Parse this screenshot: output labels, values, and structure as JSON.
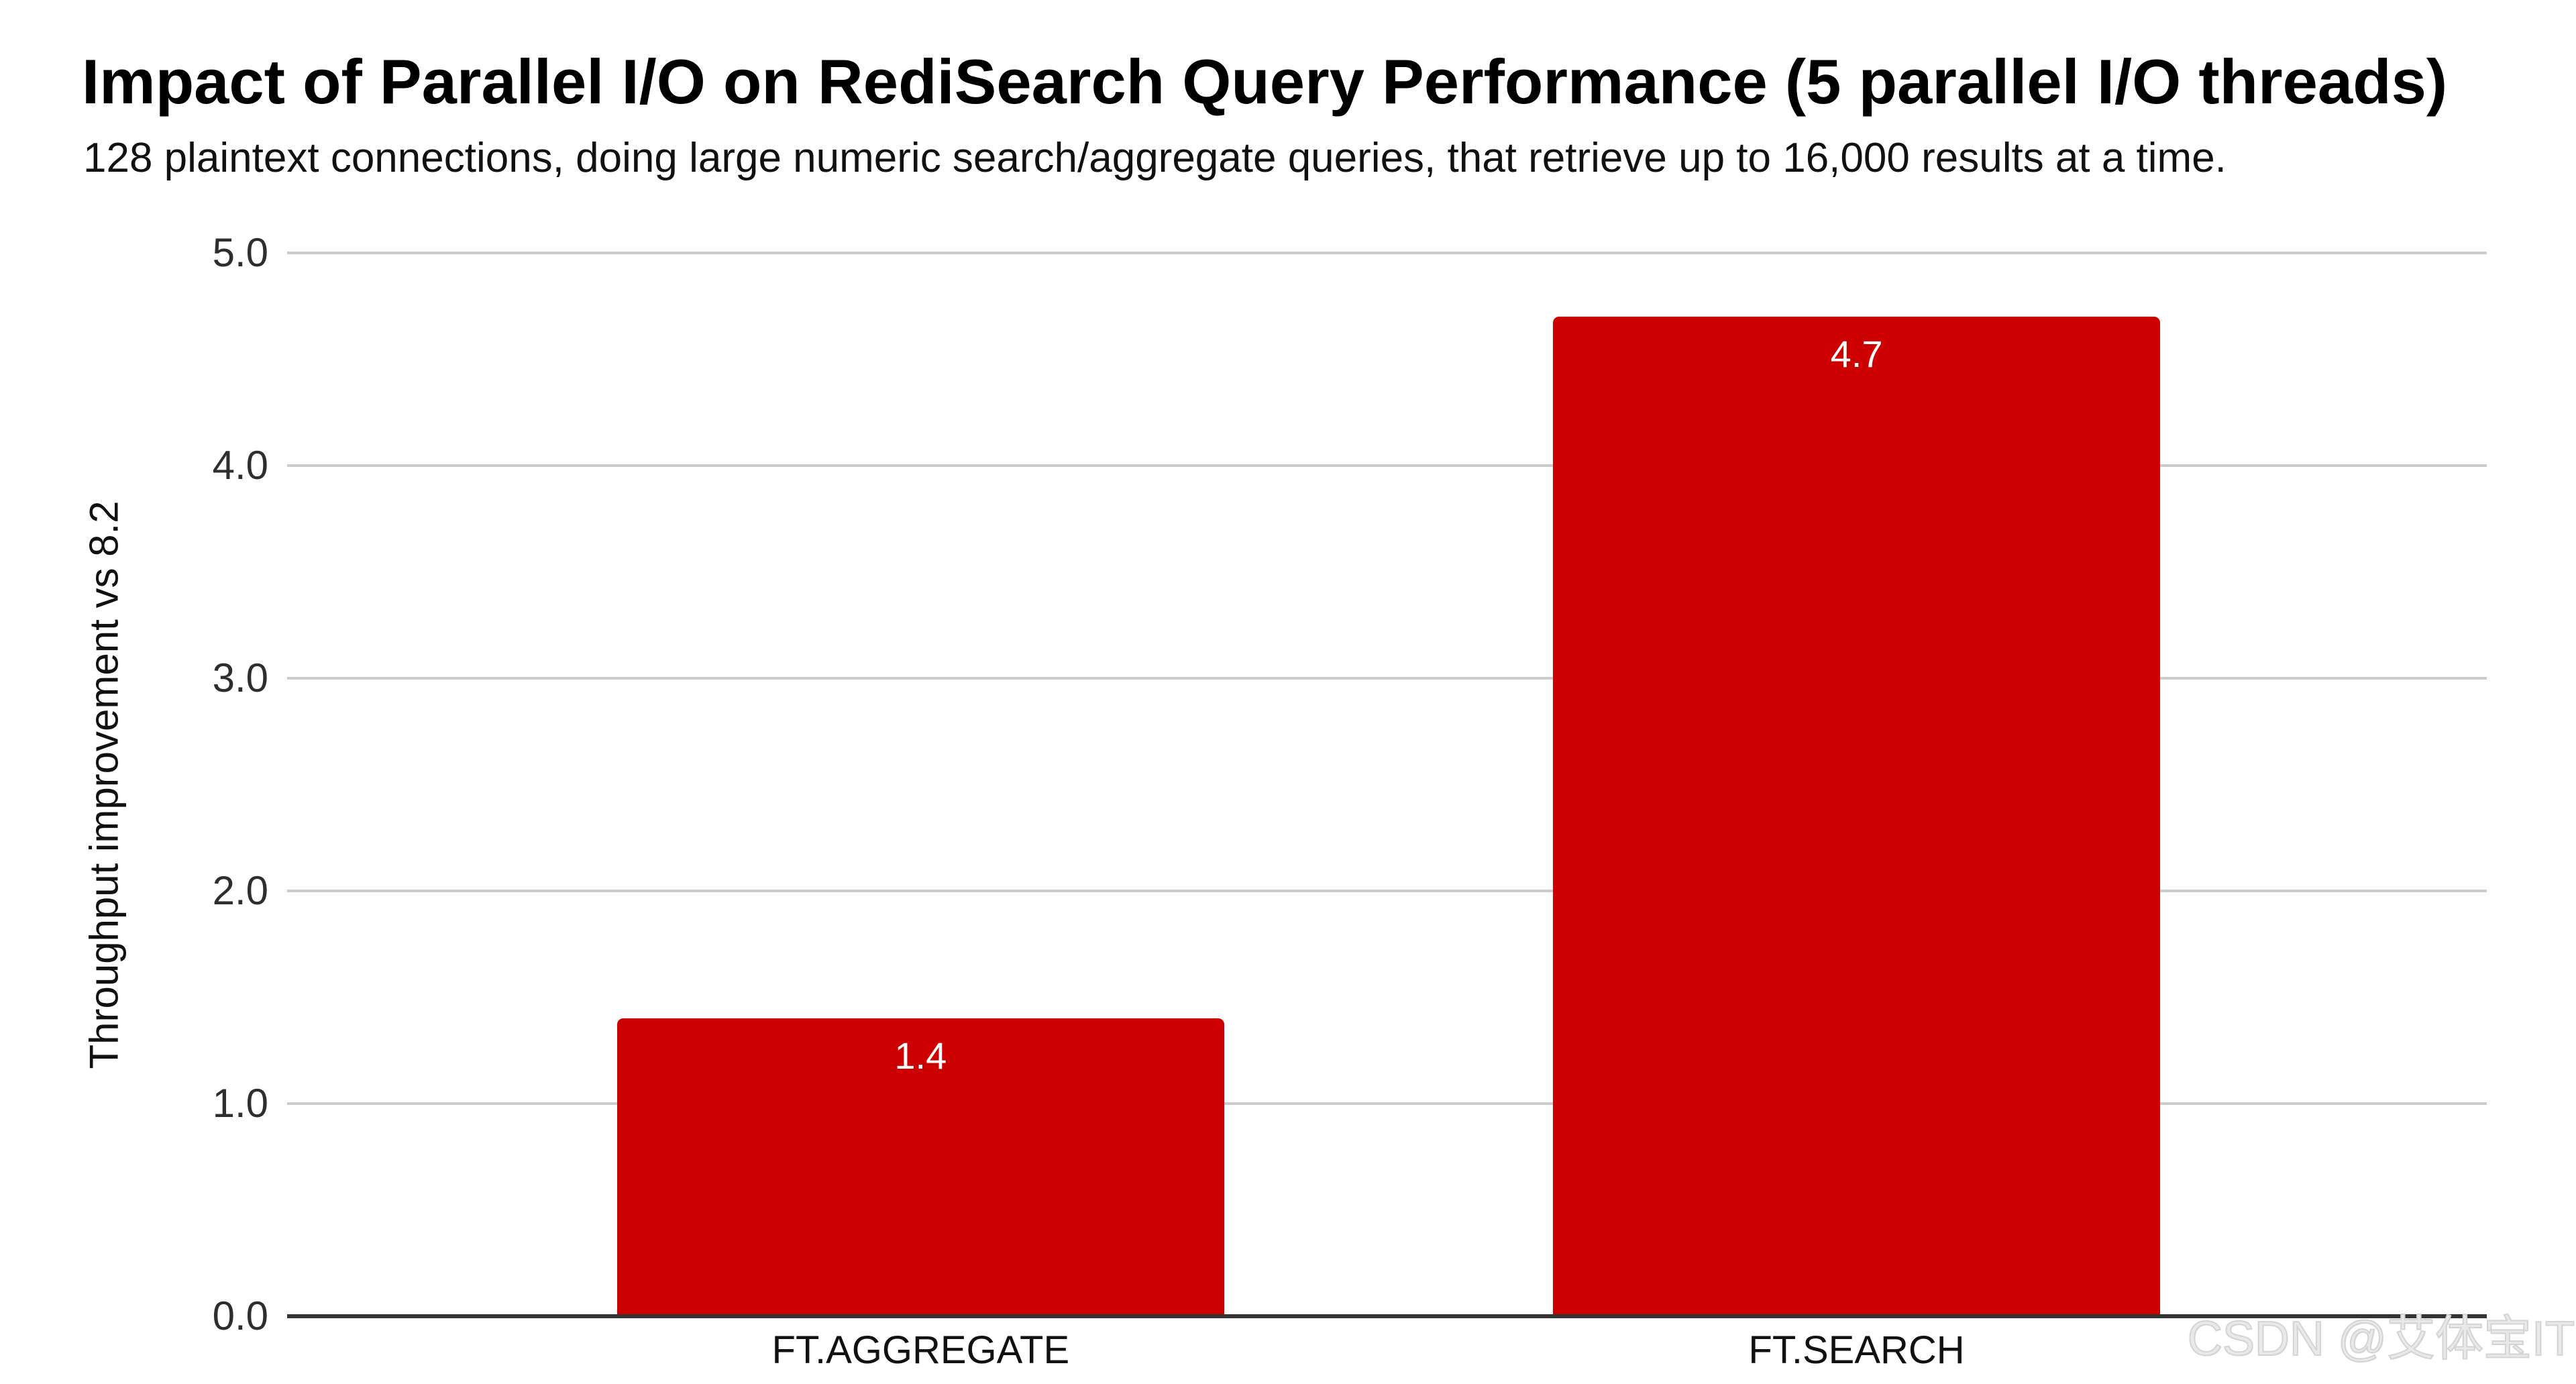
{
  "chart_data": {
    "type": "bar",
    "title": "Impact of Parallel I/O on RediSearch Query Performance (5 parallel I/O threads)",
    "subtitle": "128 plaintext connections, doing large numeric search/aggregate queries, that retrieve up to 16,000 results at a time.",
    "ylabel": "Throughput improvement vs 8.2",
    "xlabel": "",
    "categories": [
      "FT.AGGREGATE",
      "FT.SEARCH"
    ],
    "values": [
      1.4,
      4.7
    ],
    "bar_labels": [
      "1.4",
      "4.7"
    ],
    "ylim": [
      0,
      5
    ],
    "yticks": [
      "0.0",
      "1.0",
      "2.0",
      "3.0",
      "4.0",
      "5.0"
    ],
    "grid": true,
    "legend_position": "none",
    "bar_color": "#cc0000",
    "bar_label_color": "#ffffff",
    "gridline_color": "#cccccc",
    "axis_line_color": "#333333"
  },
  "watermark": {
    "text": "CSDN @艾体宝IT"
  }
}
